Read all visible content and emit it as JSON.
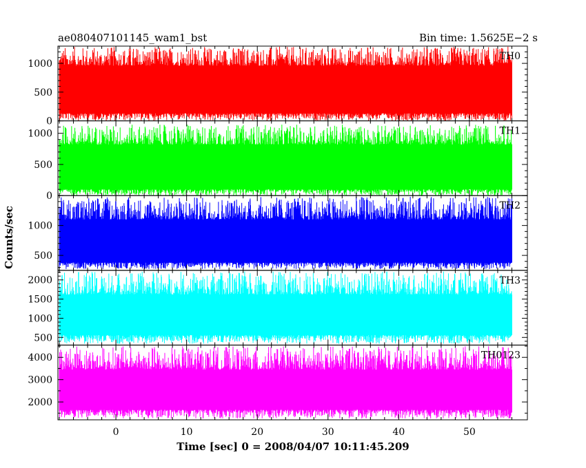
{
  "header": {
    "left_title": "ae080407101145_wam1_bst",
    "right_title": "Bin time: 1.5625E−2 s"
  },
  "axes": {
    "xlabel": "Time [sec] 0 = 2008/04/07 10:11:45.209",
    "ylabel": "Counts/sec"
  },
  "chart_data": {
    "type": "line",
    "title": "ae080407101145_wam1_bst",
    "subtitle": "Bin time: 1.5625E−2 s",
    "xlabel": "Time [sec] 0 = 2008/04/07 10:11:45.209",
    "ylabel": "Counts/sec",
    "xlim": [
      -8.2,
      58.2
    ],
    "x_data_range": [
      -8.0,
      56.0
    ],
    "xticks": [
      0,
      10,
      20,
      30,
      40,
      50
    ],
    "xtick_labels": [
      "0",
      "10",
      "20",
      "30",
      "40",
      "50"
    ],
    "panels": [
      {
        "name": "TH0",
        "color": "#ff0000",
        "ylim": [
          0,
          1300
        ],
        "yticks": [
          0,
          500,
          1000
        ],
        "ytick_labels": [
          "0",
          "500",
          "1000"
        ],
        "band_low": 130,
        "band_high": 960,
        "spike_low": 0,
        "spike_high": 1290
      },
      {
        "name": "TH1",
        "color": "#00ff00",
        "ylim": [
          0,
          1200
        ],
        "yticks": [
          0,
          500,
          1000
        ],
        "ytick_labels": [
          "0",
          "500",
          "1000"
        ],
        "band_low": 100,
        "band_high": 820,
        "spike_low": 0,
        "spike_high": 1140
      },
      {
        "name": "TH2",
        "color": "#0000ff",
        "ylim": [
          250,
          1500
        ],
        "yticks": [
          500,
          1000
        ],
        "ytick_labels": [
          "500",
          "1000"
        ],
        "band_low": 380,
        "band_high": 1100,
        "spike_low": 270,
        "spike_high": 1480
      },
      {
        "name": "TH3",
        "color": "#00ffff",
        "ylim": [
          300,
          2250
        ],
        "yticks": [
          500,
          1000,
          1500,
          2000
        ],
        "ytick_labels": [
          "500",
          "1000",
          "1500",
          "2000"
        ],
        "band_low": 560,
        "band_high": 1620,
        "spike_low": 330,
        "spike_high": 2220
      },
      {
        "name": "TH0123",
        "color": "#ff00ff",
        "ylim": [
          1200,
          4550
        ],
        "yticks": [
          2000,
          3000,
          4000
        ],
        "ytick_labels": [
          "2000",
          "3000",
          "4000"
        ],
        "band_low": 1650,
        "band_high": 3450,
        "spike_low": 1260,
        "spike_high": 4500
      }
    ]
  }
}
